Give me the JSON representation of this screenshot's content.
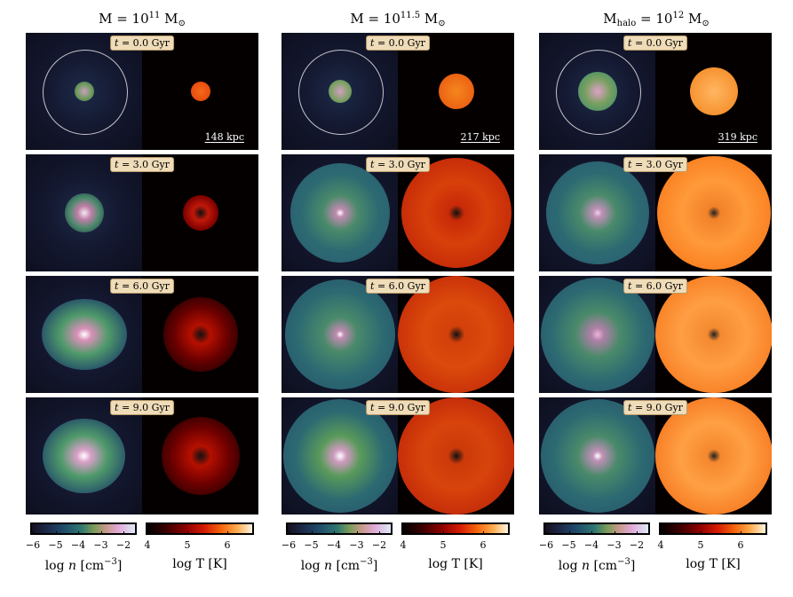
{
  "columns": [
    {
      "title_base": "M = 10",
      "title_exp": "11",
      "title_suffix": " M",
      "title_sub": "⊙",
      "scale_bar": "148 kpc"
    },
    {
      "title_base": "M = 10",
      "title_exp": "11.5",
      "title_suffix": " M",
      "title_sub": "⊙",
      "scale_bar": "217 kpc"
    },
    {
      "title_base": "M",
      "title_sub_pre": "halo",
      "title_mid": " = 10",
      "title_exp": "12",
      "title_suffix": " M",
      "title_sub": "⊙",
      "scale_bar": "319 kpc"
    }
  ],
  "times": [
    {
      "var": "t",
      "value": " = 0.0 Gyr"
    },
    {
      "var": "t",
      "value": " = 3.0 Gyr"
    },
    {
      "var": "t",
      "value": " = 6.0 Gyr"
    },
    {
      "var": "t",
      "value": " = 9.0 Gyr"
    }
  ],
  "colorbars": {
    "density": {
      "ticks": [
        "−6",
        "−5",
        "−4",
        "−3",
        "−2"
      ],
      "label_pre": "log ",
      "label_var": "n",
      "label_unit": " [cm",
      "label_exp": "−3",
      "label_close": "]",
      "colors": [
        "#16101f",
        "#1f4a6a",
        "#2f7770",
        "#c79a8a",
        "#ddeaf6"
      ]
    },
    "temperature": {
      "ticks": [
        "4",
        "5",
        "6"
      ],
      "label": "log T [K]",
      "colors": [
        "#000000",
        "#8a0000",
        "#d31a00",
        "#ffa84a",
        "#fff5df"
      ]
    }
  }
}
